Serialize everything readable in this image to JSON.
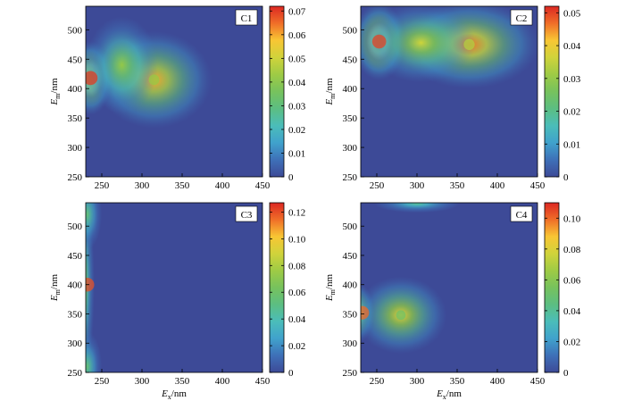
{
  "chart_data": [
    {
      "type": "heatmap",
      "label": "C1",
      "xlabel": "Ex/nm",
      "xlabel_main": "E",
      "xlabel_sub": "x",
      "xlabel_unit": "/nm",
      "ylabel": "Em/nm",
      "ylabel_main": "E",
      "ylabel_sub": "m",
      "ylabel_unit": "/nm",
      "xlim": [
        230,
        450
      ],
      "ylim": [
        250,
        540
      ],
      "xticks": [
        250,
        300,
        350,
        400,
        450
      ],
      "yticks": [
        250,
        300,
        350,
        400,
        450,
        500
      ],
      "colorbar": {
        "min": 0,
        "max": 0.072,
        "ticks": [
          "0",
          "0.01",
          "0.02",
          "0.03",
          "0.04",
          "0.05",
          "0.06",
          "0.07"
        ],
        "tick_values": [
          0,
          0.01,
          0.02,
          0.03,
          0.04,
          0.05,
          0.06,
          0.07
        ]
      },
      "peaks": [
        {
          "ex": 236,
          "em": 418,
          "value": 0.07
        },
        {
          "ex": 315,
          "em": 415,
          "value": 0.042
        }
      ]
    },
    {
      "type": "heatmap",
      "label": "C2",
      "xlabel": "Ex/nm",
      "xlabel_main": "E",
      "xlabel_sub": "x",
      "xlabel_unit": "/nm",
      "ylabel": "Em/nm",
      "ylabel_main": "E",
      "ylabel_sub": "m",
      "ylabel_unit": "/nm",
      "xlim": [
        230,
        450
      ],
      "ylim": [
        250,
        540
      ],
      "xticks": [
        250,
        300,
        350,
        400,
        450
      ],
      "yticks": [
        250,
        300,
        350,
        400,
        450,
        500
      ],
      "colorbar": {
        "min": 0,
        "max": 0.052,
        "ticks": [
          "0",
          "0.01",
          "0.02",
          "0.03",
          "0.04",
          "0.05"
        ],
        "tick_values": [
          0,
          0.01,
          0.02,
          0.03,
          0.04,
          0.05
        ]
      },
      "peaks": [
        {
          "ex": 253,
          "em": 480,
          "value": 0.05
        },
        {
          "ex": 365,
          "em": 475,
          "value": 0.033
        }
      ]
    },
    {
      "type": "heatmap",
      "label": "C3",
      "xlabel": "Ex/nm",
      "xlabel_main": "E",
      "xlabel_sub": "x",
      "xlabel_unit": "/nm",
      "ylabel": "Em/nm",
      "ylabel_main": "E",
      "ylabel_sub": "m",
      "ylabel_unit": "/nm",
      "xlim": [
        230,
        450
      ],
      "ylim": [
        250,
        540
      ],
      "xticks": [
        250,
        300,
        350,
        400,
        450
      ],
      "yticks": [
        250,
        300,
        350,
        400,
        450,
        500
      ],
      "colorbar": {
        "min": 0,
        "max": 0.127,
        "ticks": [
          "0",
          "0.02",
          "0.04",
          "0.06",
          "0.08",
          "0.10",
          "0.12"
        ],
        "tick_values": [
          0,
          0.02,
          0.04,
          0.06,
          0.08,
          0.1,
          0.12
        ]
      },
      "peaks": [
        {
          "ex": 230,
          "em": 400,
          "value": 0.12
        }
      ]
    },
    {
      "type": "heatmap",
      "label": "C4",
      "xlabel": "Ex/nm",
      "xlabel_main": "E",
      "xlabel_sub": "x",
      "xlabel_unit": "/nm",
      "ylabel": "Em/nm",
      "ylabel_main": "E",
      "ylabel_sub": "m",
      "ylabel_unit": "/nm",
      "xlim": [
        230,
        450
      ],
      "ylim": [
        250,
        540
      ],
      "xticks": [
        250,
        300,
        350,
        400,
        450
      ],
      "yticks": [
        250,
        300,
        350,
        400,
        450,
        500
      ],
      "colorbar": {
        "min": 0,
        "max": 0.11,
        "ticks": [
          "0",
          "0.02",
          "0.04",
          "0.06",
          "0.08",
          "0.10"
        ],
        "tick_values": [
          0,
          0.02,
          0.04,
          0.06,
          0.08,
          0.1
        ]
      },
      "peaks": [
        {
          "ex": 230,
          "em": 352,
          "value": 0.1
        },
        {
          "ex": 280,
          "em": 348,
          "value": 0.052
        }
      ]
    }
  ]
}
